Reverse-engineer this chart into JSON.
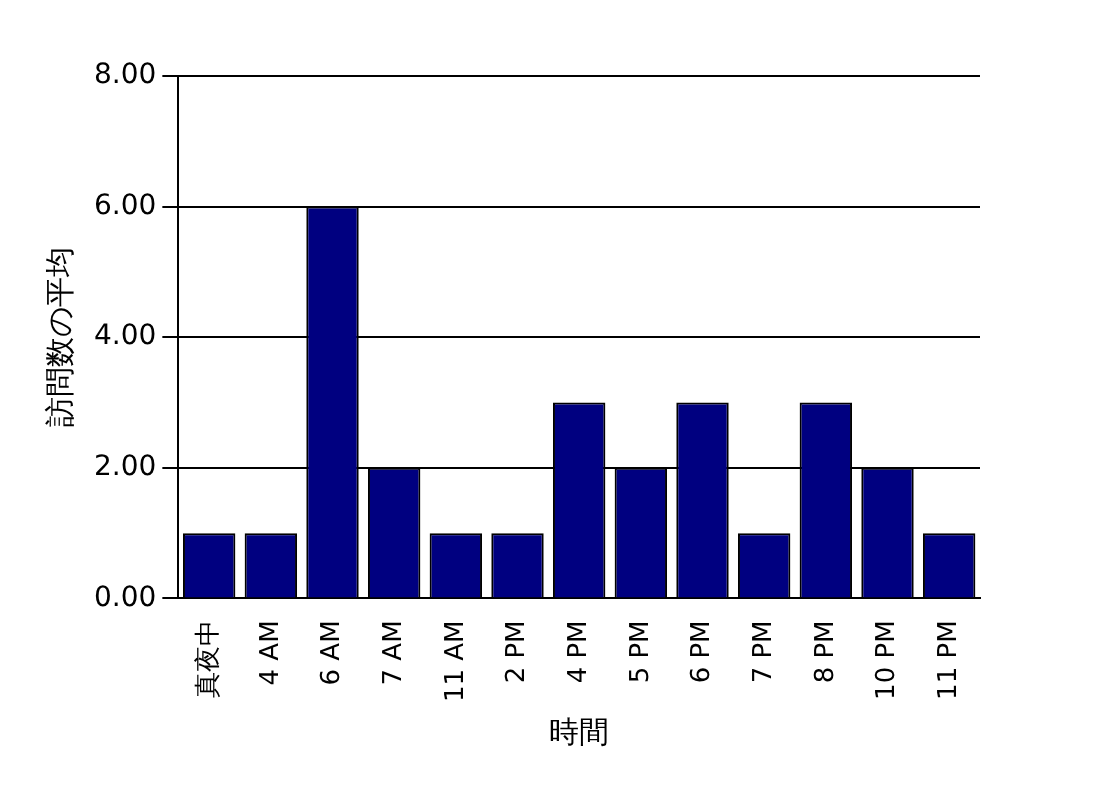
{
  "chart_data": {
    "type": "bar",
    "xlabel": "時間",
    "ylabel": "訪問数の平均",
    "categories": [
      "真夜中",
      "4 AM",
      "6 AM",
      "7 AM",
      "11 AM",
      "2 PM",
      "4 PM",
      "5 PM",
      "6 PM",
      "7 PM",
      "8 PM",
      "10 PM",
      "11 PM"
    ],
    "values": [
      1,
      1,
      6,
      2,
      1,
      1,
      3,
      2,
      3,
      1,
      3,
      2,
      1
    ],
    "color": "#000080",
    "ylim": [
      0,
      8
    ],
    "yticks": [
      {
        "value": 0,
        "label": "0.00"
      },
      {
        "value": 2,
        "label": "2.00"
      },
      {
        "value": 4,
        "label": "4.00"
      },
      {
        "value": 6,
        "label": "6.00"
      },
      {
        "value": 8,
        "label": "8.00"
      }
    ],
    "grid": "y"
  }
}
